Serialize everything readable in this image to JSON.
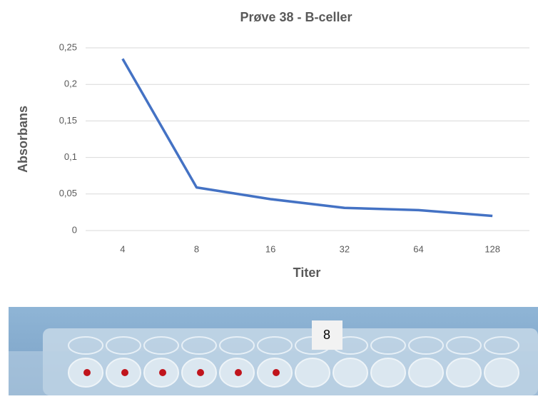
{
  "chart_data": {
    "type": "line",
    "title": "Prøve 38 - B-celler",
    "x_label": "Titer",
    "y_label": "Absorbans",
    "categories": [
      "4",
      "8",
      "16",
      "32",
      "64",
      "128"
    ],
    "series": [
      {
        "name": "Absorbans",
        "color": "#4472c4",
        "values": [
          0.235,
          0.059,
          0.043,
          0.031,
          0.028,
          0.02
        ]
      }
    ],
    "ylim": [
      0,
      0.25
    ],
    "yticks": [
      0,
      {
        "value": 0.05,
        "label": "0,05"
      },
      {
        "value": 0.1,
        "label": "0,1"
      },
      {
        "value": 0.15,
        "label": "0,15"
      },
      {
        "value": 0.2,
        "label": "0,2"
      },
      {
        "value": 0.25,
        "label": "0,25"
      }
    ],
    "grid": true
  },
  "photo": {
    "label": "8"
  }
}
